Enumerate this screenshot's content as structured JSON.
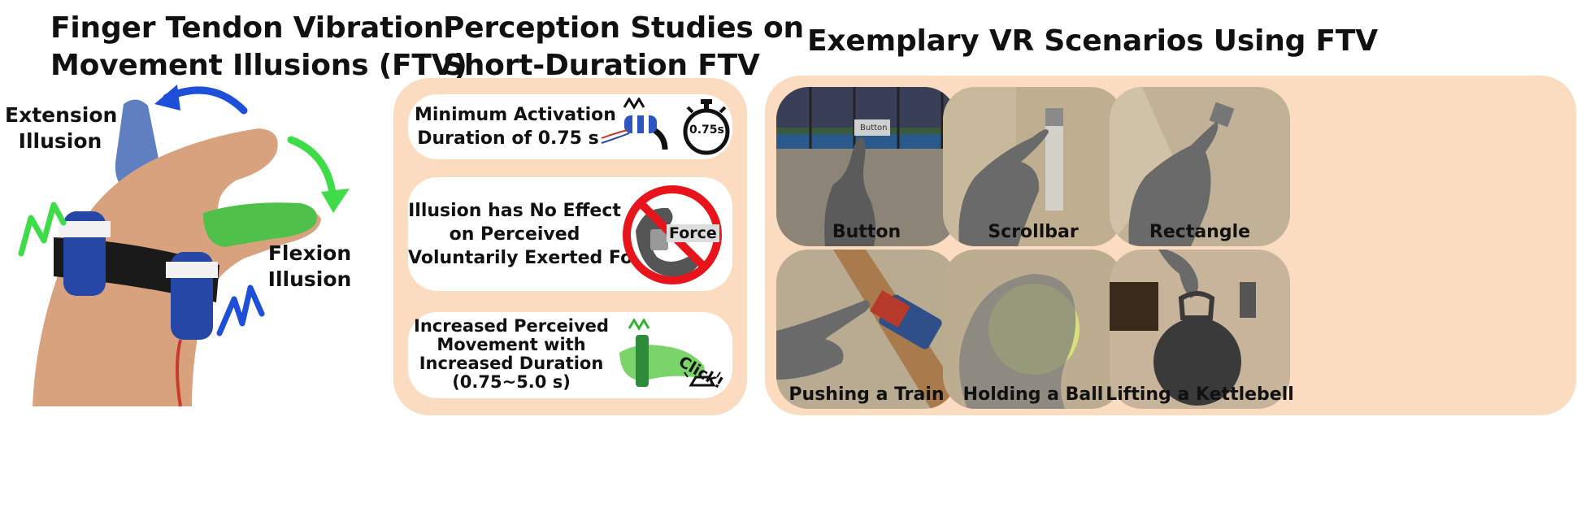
{
  "left_section": {
    "title_line1": "Finger Tendon Vibration",
    "title_line2": "Movement Illusions (FTV)",
    "extension_line1": "Extension",
    "extension_line2": "Illusion",
    "flexion_line1": "Flexion",
    "flexion_line2": "Illusion"
  },
  "middle_section": {
    "title_line1": "Perception Studies on",
    "title_line2": "Short-Duration FTV",
    "cards": [
      {
        "line1": "Minimum Activation",
        "line2": "Duration of 0.75 s",
        "timer_label": "0.75s"
      },
      {
        "line1": "Illusion has No Effect",
        "line2": "on Perceived",
        "line3": "Voluntarily Exerted Force",
        "icon_label": "Force"
      },
      {
        "line1": "Increased Perceived",
        "line2": "Movement with",
        "line3": "Increased Duration",
        "line4": "(0.75~5.0 s)",
        "click_label": "Click!"
      }
    ]
  },
  "right_section": {
    "title": "Exemplary VR Scenarios Using FTV",
    "button_overlay": "Button",
    "scenarios": [
      "Button",
      "Scrollbar",
      "Rectangle",
      "Pushing a Train",
      "Holding a Ball",
      "Lifting a Kettlebell"
    ]
  },
  "colors": {
    "panel": "#fbdcc1",
    "extension_arrow": "#1d4fd8",
    "flexion_arrow": "#3fdc4a",
    "prohibit": "#e8141b"
  }
}
